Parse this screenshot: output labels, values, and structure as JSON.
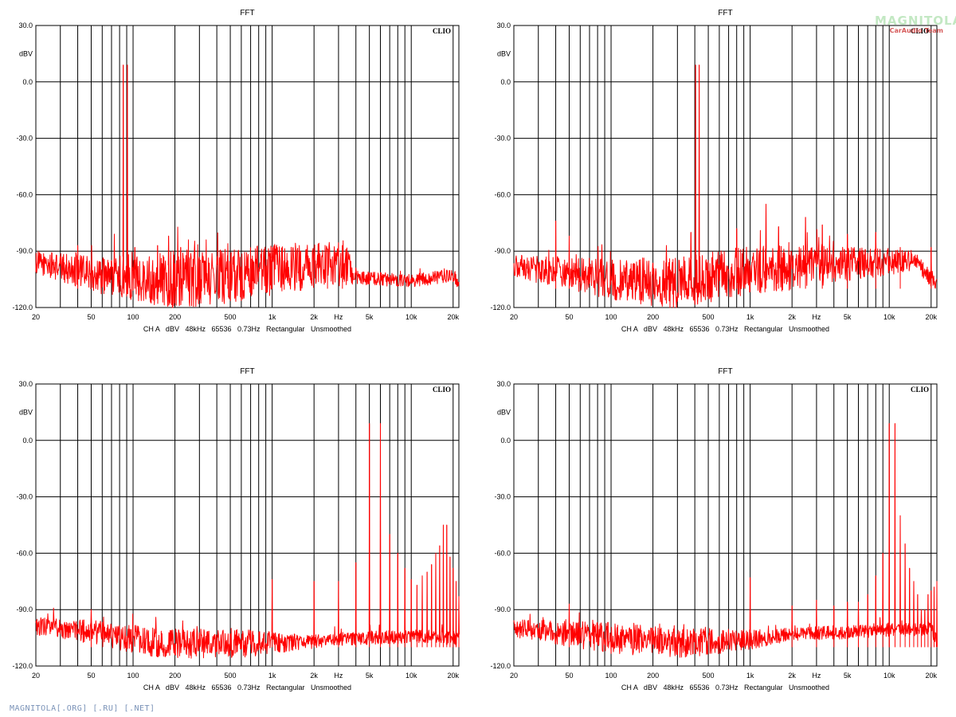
{
  "watermark": {
    "brand": "MAGNITOLA",
    "sub": "CarAudio Team",
    "accent": "#c00000"
  },
  "footer": {
    "text": "MAGNITOLA[.ORG] [.RU] [.NET]"
  },
  "colors": {
    "trace": "#ff0000",
    "grid": "#000000",
    "text": "#000000"
  },
  "chart_data": [
    {
      "type": "line",
      "title": "FFT",
      "brand": "CLIO",
      "ylabel": "dBV",
      "xunit": "Hz",
      "xscale": "log",
      "xlim": [
        20,
        22000
      ],
      "ylim": [
        -120,
        30
      ],
      "yticks": [
        "30.0",
        "0.0",
        "-30.0",
        "-60.0",
        "-90.0",
        "-120.0"
      ],
      "xticks": [
        "20",
        "50",
        "100",
        "200",
        "500",
        "1k",
        "2k",
        "5k",
        "10k",
        "20k"
      ],
      "settings": "CH A   dBV   48kHz   65536   0.73Hz   Rectangular   Unsmoothed",
      "grid": true,
      "series": [
        {
          "peaks": [
            [
              85,
              9
            ],
            [
              91,
              9
            ],
            [
              40,
              -87
            ],
            [
              103,
              -88
            ],
            [
              150,
              -87
            ],
            [
              180,
              -82
            ],
            [
              220,
              -88
            ],
            [
              250,
              -84
            ],
            [
              480,
              -86
            ],
            [
              1000,
              -88
            ],
            [
              1600,
              -90
            ],
            [
              2500,
              -90
            ],
            [
              3200,
              -87
            ]
          ],
          "noise": [
            [
              20,
              -96
            ],
            [
              60,
              -103
            ],
            [
              150,
              -105
            ],
            [
              400,
              -104
            ],
            [
              1000,
              -100
            ],
            [
              3500,
              -96
            ],
            [
              3800,
              -104
            ],
            [
              10000,
              -106
            ],
            [
              20000,
              -103
            ],
            [
              22000,
              -107
            ]
          ],
          "noise_spread": [
            [
              20,
              5
            ],
            [
              100,
              10
            ],
            [
              200,
              13
            ],
            [
              3500,
              10
            ],
            [
              3800,
              3
            ],
            [
              22000,
              3
            ]
          ]
        }
      ]
    },
    {
      "type": "line",
      "title": "FFT",
      "brand": "CLIO",
      "ylabel": "dBV",
      "xunit": "Hz",
      "xscale": "log",
      "xlim": [
        20,
        22000
      ],
      "ylim": [
        -120,
        30
      ],
      "yticks": [
        "30.0",
        "0.0",
        "-30.0",
        "-60.0",
        "-90.0",
        "-120.0"
      ],
      "xticks": [
        "20",
        "50",
        "100",
        "200",
        "500",
        "1k",
        "2k",
        "5k",
        "10k",
        "20k"
      ],
      "settings": "CH A   dBV   48kHz   65536   0.73Hz   Rectangular   Unsmoothed",
      "grid": true,
      "series": [
        {
          "peaks": [
            [
              405,
              9
            ],
            [
              430,
              9
            ],
            [
              40,
              -74
            ],
            [
              50,
              -82
            ],
            [
              250,
              -87
            ],
            [
              375,
              -80
            ],
            [
              800,
              -78
            ],
            [
              1300,
              -65
            ],
            [
              1600,
              -77
            ],
            [
              2500,
              -72
            ],
            [
              3300,
              -76
            ],
            [
              5000,
              -81
            ],
            [
              8000,
              -80
            ],
            [
              12000,
              -88
            ],
            [
              20000,
              -88
            ]
          ],
          "noise": [
            [
              20,
              -98
            ],
            [
              100,
              -105
            ],
            [
              300,
              -107
            ],
            [
              1000,
              -100
            ],
            [
              5000,
              -97
            ],
            [
              15000,
              -95
            ],
            [
              22000,
              -108
            ]
          ],
          "noise_spread": [
            [
              20,
              5
            ],
            [
              100,
              9
            ],
            [
              300,
              12
            ],
            [
              2000,
              10
            ],
            [
              10000,
              6
            ],
            [
              22000,
              3
            ]
          ]
        }
      ]
    },
    {
      "type": "line",
      "title": "FFT",
      "brand": "CLIO",
      "ylabel": "dBV",
      "xunit": "Hz",
      "xscale": "log",
      "xlim": [
        20,
        22000
      ],
      "ylim": [
        -120,
        30
      ],
      "yticks": [
        "30.0",
        "0.0",
        "-30.0",
        "-60.0",
        "-90.0",
        "-120.0"
      ],
      "xticks": [
        "20",
        "50",
        "100",
        "200",
        "500",
        "1k",
        "2k",
        "5k",
        "10k",
        "20k"
      ],
      "settings": "CH A   dBV   48kHz   65536   0.73Hz   Rectangular   Unsmoothed",
      "grid": true,
      "series": [
        {
          "peaks": [
            [
              5000,
              9
            ],
            [
              6000,
              9
            ],
            [
              50,
              -90
            ],
            [
              1000,
              -74
            ],
            [
              2000,
              -75
            ],
            [
              3000,
              -75
            ],
            [
              4000,
              -65
            ],
            [
              7000,
              -50
            ],
            [
              8000,
              -60
            ],
            [
              9000,
              -68
            ],
            [
              10000,
              -74
            ],
            [
              11000,
              -77
            ],
            [
              12000,
              -72
            ],
            [
              13000,
              -70
            ],
            [
              14000,
              -66
            ],
            [
              15000,
              -60
            ],
            [
              16000,
              -56
            ],
            [
              17000,
              -45
            ],
            [
              18000,
              -45
            ],
            [
              19000,
              -62
            ],
            [
              20000,
              -68
            ],
            [
              21000,
              -75
            ],
            [
              22000,
              -83
            ]
          ],
          "noise": [
            [
              20,
              -99
            ],
            [
              50,
              -102
            ],
            [
              150,
              -108
            ],
            [
              700,
              -108
            ],
            [
              2000,
              -107
            ],
            [
              5000,
              -105
            ],
            [
              15000,
              -104
            ],
            [
              22000,
              -106
            ]
          ],
          "noise_spread": [
            [
              20,
              4
            ],
            [
              150,
              7
            ],
            [
              700,
              6
            ],
            [
              2000,
              3
            ],
            [
              22000,
              3
            ]
          ]
        }
      ]
    },
    {
      "type": "line",
      "title": "FFT",
      "brand": "CLIO",
      "ylabel": "dBV",
      "xunit": "Hz",
      "xscale": "log",
      "xlim": [
        20,
        22000
      ],
      "ylim": [
        -120,
        30
      ],
      "yticks": [
        "30.0",
        "0.0",
        "-30.0",
        "-60.0",
        "-90.0",
        "-120.0"
      ],
      "xticks": [
        "20",
        "50",
        "100",
        "200",
        "500",
        "1k",
        "2k",
        "5k",
        "10k",
        "20k"
      ],
      "settings": "CH A   dBV   48kHz   65536   0.73Hz   Rectangular   Unsmoothed",
      "grid": true,
      "series": [
        {
          "peaks": [
            [
              10000,
              9
            ],
            [
              11000,
              9
            ],
            [
              50,
              -87
            ],
            [
              1000,
              -73
            ],
            [
              2000,
              -88
            ],
            [
              3000,
              -85
            ],
            [
              4000,
              -88
            ],
            [
              5000,
              -86
            ],
            [
              6000,
              -86
            ],
            [
              7000,
              -82
            ],
            [
              8000,
              -72
            ],
            [
              9000,
              -60
            ],
            [
              10000,
              -40
            ],
            [
              12000,
              -40
            ],
            [
              13000,
              -55
            ],
            [
              14000,
              -68
            ],
            [
              15000,
              -75
            ],
            [
              16000,
              -82
            ],
            [
              17000,
              -90
            ],
            [
              18000,
              -90
            ],
            [
              19000,
              -82
            ],
            [
              20000,
              -80
            ],
            [
              21000,
              -78
            ],
            [
              22000,
              -75
            ]
          ],
          "noise": [
            [
              20,
              -100
            ],
            [
              100,
              -105
            ],
            [
              300,
              -108
            ],
            [
              1000,
              -106
            ],
            [
              2000,
              -103
            ],
            [
              5000,
              -102
            ],
            [
              20000,
              -100
            ],
            [
              22000,
              -107
            ]
          ],
          "noise_spread": [
            [
              20,
              4
            ],
            [
              100,
              7
            ],
            [
              500,
              6
            ],
            [
              1800,
              3
            ],
            [
              22000,
              3
            ]
          ]
        }
      ]
    }
  ]
}
